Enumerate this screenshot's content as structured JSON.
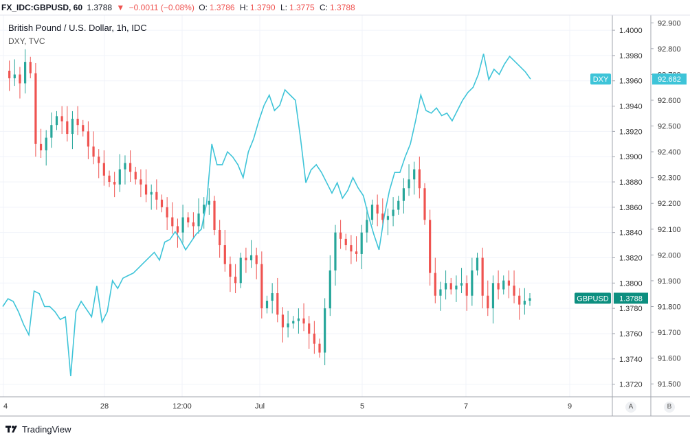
{
  "header": {
    "symbol": "FX_IDC:GBPUSD, 60",
    "last": "1.3788",
    "change": "−0.0011 (−0.08%)",
    "o_label": "O:",
    "o_value": "1.3786",
    "h_label": "H:",
    "h_value": "1.3790",
    "l_label": "L:",
    "l_value": "1.3775",
    "c_label": "C:",
    "c_value": "1.3788"
  },
  "legend": {
    "main": "British Pound / U.S. Dollar, 1h, IDC",
    "compare": "DXY, TVC"
  },
  "footer": {
    "brand": "TradingView"
  },
  "scale_buttons": {
    "a": "A",
    "b": "B"
  },
  "colors": {
    "up": "#26a69a",
    "down": "#ef5350",
    "dxy": "#3ec4d8",
    "gbpusd_badge": "#0d8f80",
    "dxy_badge": "#3ec4d8"
  },
  "chart_data": {
    "type": "line",
    "title": "British Pound / U.S. Dollar, 1h, IDC",
    "x_tick_labels": [
      "4",
      "28",
      "12:00",
      "Jul",
      "5",
      "7",
      "9"
    ],
    "axis_a": {
      "name": "GBPUSD",
      "ticks": [
        "1.4000",
        "1.3980",
        "1.3960",
        "1.3940",
        "1.3920",
        "1.3900",
        "1.3880",
        "1.3860",
        "1.3840",
        "1.3820",
        "1.3800",
        "1.3780",
        "1.3760",
        "1.3740",
        "1.3720"
      ],
      "range": [
        1.371,
        1.4012
      ]
    },
    "axis_b": {
      "name": "DXY",
      "ticks": [
        "92.900",
        "92.800",
        "92.700",
        "92.600",
        "92.500",
        "92.400",
        "92.300",
        "92.200",
        "92.100",
        "92.000",
        "91.900",
        "91.800",
        "91.700",
        "91.600",
        "91.500"
      ],
      "range": [
        91.45,
        92.93
      ]
    },
    "last_labels": {
      "gbpusd_name": "GBPUSD",
      "gbpusd_value": "1.3788",
      "dxy_name": "DXY",
      "dxy_value": "92.682"
    },
    "series": [
      {
        "name": "GBPUSD",
        "kind": "close",
        "values": [
          1.3968,
          1.3962,
          1.3965,
          1.3958,
          1.3975,
          1.3966,
          1.391,
          1.3905,
          1.3915,
          1.3925,
          1.3932,
          1.3928,
          1.3918,
          1.393,
          1.3925,
          1.392,
          1.3908,
          1.39,
          1.3895,
          1.3885,
          1.388,
          1.3878,
          1.389,
          1.3895,
          1.3888,
          1.3882,
          1.3878,
          1.387,
          1.3872,
          1.3866,
          1.386,
          1.3852,
          1.3845,
          1.384,
          1.3852,
          1.3848,
          1.3845,
          1.3855,
          1.3862,
          1.3865,
          1.3842,
          1.383,
          1.3815,
          1.3805,
          1.38,
          1.382,
          1.3818,
          1.3822,
          1.3815,
          1.378,
          1.3786,
          1.3792,
          1.3775,
          1.3765,
          1.3768,
          1.377,
          1.3772,
          1.3768,
          1.376,
          1.3752,
          1.3745,
          1.378,
          1.381,
          1.384,
          1.3835,
          1.383,
          1.3825,
          1.3823,
          1.384,
          1.385,
          1.3862,
          1.3855,
          1.385,
          1.3853,
          1.3858,
          1.3865,
          1.3875,
          1.3882,
          1.389,
          1.3875,
          1.385,
          1.3808,
          1.379,
          1.3795,
          1.38,
          1.3795,
          1.3798,
          1.38,
          1.379,
          1.381,
          1.382,
          1.379,
          1.378,
          1.38,
          1.3795,
          1.3802,
          1.3798,
          1.379,
          1.3783,
          1.3786,
          1.3788
        ]
      },
      {
        "name": "DXY",
        "values": [
          91.8,
          91.83,
          91.82,
          91.78,
          91.73,
          91.69,
          91.86,
          91.85,
          91.8,
          91.8,
          91.78,
          91.75,
          91.76,
          91.53,
          91.78,
          91.82,
          91.79,
          91.76,
          91.88,
          91.74,
          91.78,
          91.9,
          91.87,
          91.91,
          91.92,
          91.93,
          91.95,
          91.97,
          91.99,
          92.01,
          91.98,
          92.05,
          92.06,
          92.09,
          92.06,
          92.02,
          92.05,
          92.08,
          92.1,
          92.2,
          92.43,
          92.35,
          92.35,
          92.4,
          92.38,
          92.35,
          92.3,
          92.4,
          92.45,
          92.52,
          92.58,
          92.62,
          92.56,
          92.58,
          92.64,
          92.62,
          92.6,
          92.45,
          92.28,
          92.33,
          92.35,
          92.32,
          92.28,
          92.24,
          92.28,
          92.22,
          92.25,
          92.3,
          92.26,
          92.23,
          92.15,
          92.08,
          92.02,
          92.15,
          92.25,
          92.32,
          92.32,
          92.38,
          92.43,
          92.52,
          92.62,
          92.56,
          92.55,
          92.57,
          92.54,
          92.55,
          92.52,
          92.56,
          92.6,
          92.63,
          92.65,
          92.7,
          92.78,
          92.68,
          92.72,
          92.7,
          92.74,
          92.77,
          92.75,
          92.73,
          92.71,
          92.682
        ]
      }
    ]
  }
}
